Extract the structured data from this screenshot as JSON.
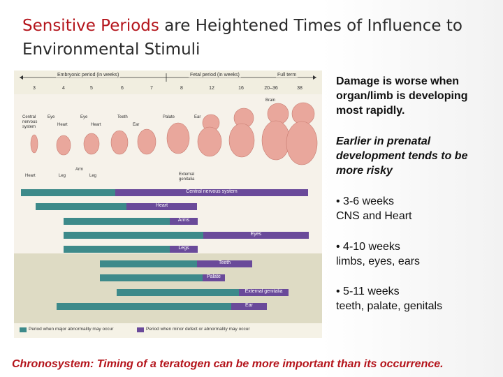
{
  "title": {
    "highlight": "Sensitive Periods",
    "rest": " are Heightened Times of Influence to",
    "line2": "Environmental Stimuli"
  },
  "figure": {
    "periods": {
      "embryonic": "Embryonic period (in weeks)",
      "fetal": "Fetal period (in weeks)",
      "full_term": "Full term"
    },
    "weeks": [
      "3",
      "4",
      "5",
      "6",
      "7",
      "8",
      "12",
      "16",
      "20–36",
      "38"
    ],
    "labels": {
      "brain": "Brain",
      "cns": "Central\nnervous\nsystem",
      "eye1": "Eye",
      "heart_top": "Heart",
      "eye2": "Eye",
      "heart2": "Heart",
      "teeth": "Teeth",
      "ear_top": "Ear",
      "palate": "Palate",
      "ear_top2": "Ear",
      "heart_bottom": "Heart",
      "leg1": "Leg",
      "arm": "Arm",
      "leg2": "Leg",
      "ext_gen": "External\ngenitalia"
    },
    "bars": [
      {
        "name": "Central nervous system"
      },
      {
        "name": "Heart"
      },
      {
        "name": "Arms"
      },
      {
        "name": "Eyes"
      },
      {
        "name": "Legs"
      },
      {
        "name": "Teeth"
      },
      {
        "name": "Palate"
      },
      {
        "name": "External genitalia"
      },
      {
        "name": "Ear"
      }
    ],
    "legend": {
      "major": "Period when major abnormality may occur",
      "minor": "Period when minor defect or abnormality may occur"
    },
    "colors": {
      "major": "#3d8a8a",
      "minor": "#6a4a9a"
    }
  },
  "notes": {
    "n1": "Damage is worse when organ/limb is developing most rapidly.",
    "n2": "Earlier in prenatal development tends to be more risky",
    "n3_range": "•  3-6 weeks",
    "n3_items": "CNS and Heart",
    "n4_range": "•  4-10 weeks",
    "n4_items": "limbs, eyes, ears",
    "n5_range": "•  5-11 weeks",
    "n5_items": "teeth, palate, genitals"
  },
  "footer": "Chronosystem: Timing of a teratogen can be more important than its occurrence."
}
